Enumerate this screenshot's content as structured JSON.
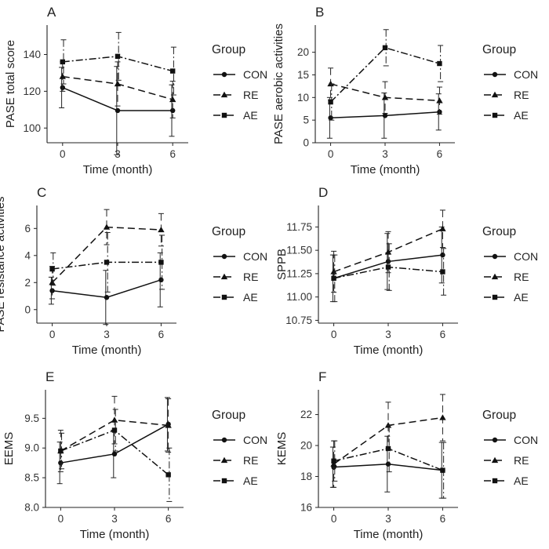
{
  "figure": {
    "panels": [
      "A",
      "B",
      "C",
      "D",
      "E",
      "F"
    ]
  },
  "chart_data": [
    {
      "letter": "A",
      "type": "line",
      "ylabel": "PASE total score",
      "xlabel": "Time (month)",
      "x": [
        0,
        3,
        6
      ],
      "xticks": [
        "0",
        "3",
        "6"
      ],
      "ylim": [
        92,
        156
      ],
      "yticks": [
        100,
        120,
        140
      ],
      "legend_title": "Group",
      "series": [
        {
          "name": "CON",
          "values": [
            122,
            109.5,
            109.5
          ],
          "err": [
            11,
            24,
            14
          ]
        },
        {
          "name": "RE",
          "values": [
            128,
            124,
            115.5
          ],
          "err": [
            8,
            12,
            10
          ]
        },
        {
          "name": "AE",
          "values": [
            136,
            139,
            131
          ],
          "err": [
            12,
            13,
            13
          ]
        }
      ]
    },
    {
      "letter": "B",
      "type": "line",
      "ylabel": "PASE aerobic activities",
      "xlabel": "Time (month)",
      "x": [
        0,
        3,
        6
      ],
      "xticks": [
        "0",
        "3",
        "6"
      ],
      "ylim": [
        0,
        26
      ],
      "yticks": [
        0,
        5,
        10,
        15,
        20
      ],
      "legend_title": "Group",
      "series": [
        {
          "name": "CON",
          "values": [
            5.5,
            6,
            6.8
          ],
          "err": [
            4.5,
            5,
            4
          ]
        },
        {
          "name": "RE",
          "values": [
            13,
            10,
            9.3
          ],
          "err": [
            3.5,
            3.5,
            3
          ]
        },
        {
          "name": "AE",
          "values": [
            9,
            21,
            17.5
          ],
          "err": [
            4,
            4,
            4
          ]
        }
      ]
    },
    {
      "letter": "C",
      "type": "line",
      "ylabel": "PASE resistance activities",
      "xlabel": "Time (month)",
      "x": [
        0,
        3,
        6
      ],
      "xticks": [
        "0",
        "3",
        "6"
      ],
      "ylim": [
        -1,
        7.7
      ],
      "yticks": [
        0,
        2,
        4,
        6
      ],
      "legend_title": "Group",
      "series": [
        {
          "name": "CON",
          "values": [
            1.4,
            0.9,
            2.2
          ],
          "err": [
            1,
            2,
            2
          ]
        },
        {
          "name": "RE",
          "values": [
            2,
            6.1,
            5.9
          ],
          "err": [
            1.2,
            1.3,
            1.2
          ]
        },
        {
          "name": "AE",
          "values": [
            3,
            3.5,
            3.5
          ],
          "err": [
            1.2,
            2.2,
            2
          ]
        }
      ]
    },
    {
      "letter": "D",
      "type": "line",
      "ylabel": "SPPB",
      "xlabel": "Time (month)",
      "x": [
        0,
        3,
        6
      ],
      "xticks": [
        "0",
        "3",
        "6"
      ],
      "ylim": [
        10.72,
        11.98
      ],
      "yticks": [
        10.75,
        11.0,
        11.25,
        11.5,
        11.75
      ],
      "ytick_labels": [
        "10.75",
        "11.00",
        "11.25",
        "11.50",
        "11.75"
      ],
      "legend_title": "Group",
      "series": [
        {
          "name": "CON",
          "values": [
            11.2,
            11.38,
            11.45
          ],
          "err": [
            0.25,
            0.3,
            0.3
          ]
        },
        {
          "name": "RE",
          "values": [
            11.27,
            11.48,
            11.73
          ],
          "err": [
            0.22,
            0.22,
            0.2
          ]
        },
        {
          "name": "AE",
          "values": [
            11.2,
            11.32,
            11.27
          ],
          "err": [
            0.25,
            0.25,
            0.25
          ]
        }
      ]
    },
    {
      "letter": "E",
      "type": "line",
      "ylabel": "EEMS",
      "xlabel": "Time (month)",
      "x": [
        0,
        3,
        6
      ],
      "xticks": [
        "0",
        "3",
        "6"
      ],
      "ylim": [
        8.0,
        9.98
      ],
      "yticks": [
        8.0,
        8.5,
        9.0,
        9.5
      ],
      "ytick_labels": [
        "8.0",
        "8.5",
        "9.0",
        "9.5"
      ],
      "legend_title": "Group",
      "series": [
        {
          "name": "CON",
          "values": [
            8.75,
            8.9,
            9.4
          ],
          "err": [
            0.35,
            0.4,
            0.45
          ]
        },
        {
          "name": "RE",
          "values": [
            8.95,
            9.47,
            9.38
          ],
          "err": [
            0.35,
            0.4,
            0.45
          ]
        },
        {
          "name": "AE",
          "values": [
            8.95,
            9.3,
            8.55
          ],
          "err": [
            0.3,
            0.35,
            0.45
          ]
        }
      ]
    },
    {
      "letter": "F",
      "type": "line",
      "ylabel": "KEMS",
      "xlabel": "Time (month)",
      "x": [
        0,
        3,
        6
      ],
      "xticks": [
        "0",
        "3",
        "6"
      ],
      "ylim": [
        16,
        23.6
      ],
      "yticks": [
        16,
        18,
        20,
        22
      ],
      "legend_title": "Group",
      "series": [
        {
          "name": "CON",
          "values": [
            18.6,
            18.8,
            18.4
          ],
          "err": [
            1.3,
            1.8,
            1.8
          ]
        },
        {
          "name": "RE",
          "values": [
            18.8,
            21.3,
            21.8
          ],
          "err": [
            1.5,
            1.5,
            1.5
          ]
        },
        {
          "name": "AE",
          "values": [
            19,
            19.8,
            18.4
          ],
          "err": [
            1.3,
            1.5,
            1.8
          ]
        }
      ]
    }
  ]
}
